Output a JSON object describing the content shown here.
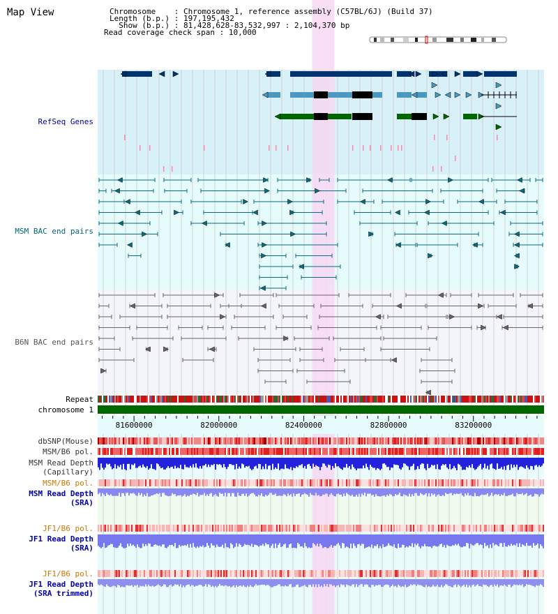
{
  "app": {
    "title": "Map View"
  },
  "header": {
    "lines": [
      {
        "key": "Chromosome",
        "value": "Chromosome 1, reference assembly (C57BL/6J) (Build 37)"
      },
      {
        "key": "Length (b.p.)",
        "value": "197,195,432"
      },
      {
        "key": "Show (b.p.)",
        "value": "81,428,628-83,532,997 : 2,104,370 bp"
      },
      {
        "key": "Read coverage check span",
        "value": "10,000"
      }
    ]
  },
  "tracks": {
    "refseq": {
      "label": "RefSeq Genes",
      "color": "#000099"
    },
    "msm_bac": {
      "label": "MSM BAC end pairs",
      "color": "#006677"
    },
    "b6n_bac": {
      "label": "B6N BAC end pairs",
      "color": "#555555"
    },
    "repeat": {
      "label": "Repeat"
    },
    "chromosome": {
      "label": "chromosome 1"
    },
    "dbsnp": {
      "label": "dbSNP(Mouse)"
    },
    "msm_b6_pol_1": {
      "label": "MSM/B6 pol."
    },
    "msm_read_depth_cap": {
      "label1": "MSM Read Depth",
      "label2": "(Capillary)"
    },
    "msm_b6_pol_2": {
      "label": "MSM/B6 pol."
    },
    "msm_read_depth_sra": {
      "label1": "MSM Read Depth",
      "label2": "(SRA)"
    },
    "jf1_b6_pol_1": {
      "label": "JF1/B6 pol."
    },
    "jf1_read_depth_sra": {
      "label1": "JF1 Read Depth",
      "label2": "(SRA)"
    },
    "jf1_b6_pol_2": {
      "label": "JF1/B6 pol."
    },
    "jf1_read_depth_trim": {
      "label1": "JF1 Read Depth",
      "label2": "(SRA trimmed)"
    }
  },
  "ruler": {
    "ticks": [
      {
        "pos": 81600000,
        "label": "81600000"
      },
      {
        "pos": 82000000,
        "label": "82000000"
      },
      {
        "pos": 82400000,
        "label": "82400000"
      },
      {
        "pos": 82800000,
        "label": "82800000"
      },
      {
        "pos": 83200000,
        "label": "83200000"
      }
    ],
    "start": 81428628,
    "end": 83532997
  },
  "highlight": {
    "start": 82440000,
    "end": 82545000
  },
  "colors": {
    "refseq_bg": "#d8f0f8",
    "msm_bg": "#e6fbfb",
    "b6n_bg": "#f4f4fb",
    "highlight": "#f7d8f3",
    "gene_dark": "#003370",
    "gene_mid": "#4a98c0",
    "gene_green": "#006600",
    "chrom_green": "#006600",
    "depth_blue": "#2222dd",
    "depth_light": "#7777ee",
    "pol_orange": "#cc7700",
    "label_blue": "#0000aa"
  }
}
